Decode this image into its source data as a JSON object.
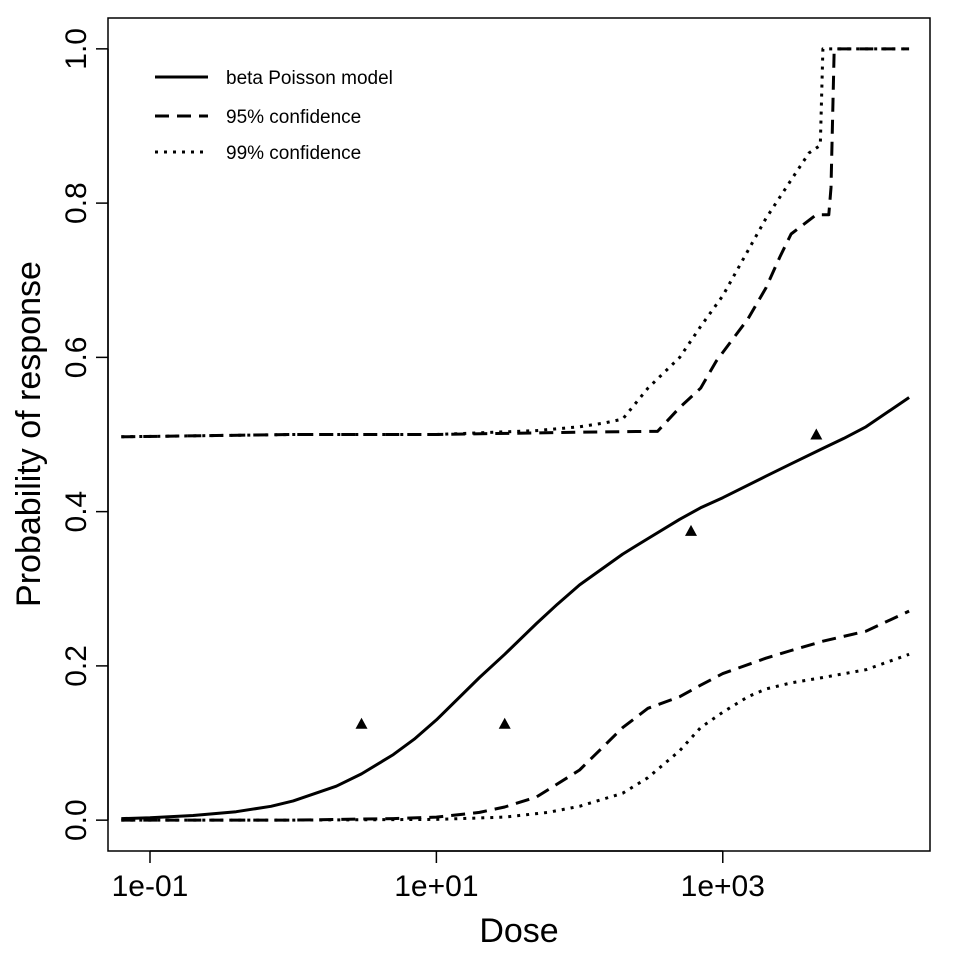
{
  "chart_data": {
    "type": "line",
    "xlabel": "Dose",
    "ylabel": "Probability of response",
    "x_scale": "log10",
    "xlim": [
      0.0509,
      28000
    ],
    "ylim": [
      -0.04,
      1.04
    ],
    "x_ticks": [
      0.1,
      10,
      1000
    ],
    "x_tick_labels": [
      "1e-01",
      "1e+01",
      "1e+03"
    ],
    "y_ticks": [
      0,
      0.2,
      0.4,
      0.6,
      0.8,
      1.0
    ],
    "y_tick_labels": [
      "0.0",
      "0.2",
      "0.4",
      "0.6",
      "0.8",
      "1.0"
    ],
    "legend": {
      "position": "top-left",
      "entries": [
        {
          "label": "beta Poisson model",
          "style": "solid"
        },
        {
          "label": "95% confidence",
          "style": "dashed"
        },
        {
          "label": "99% confidence",
          "style": "dotted"
        }
      ]
    },
    "series": [
      {
        "key": "model",
        "style": "solid",
        "x": [
          0.063,
          0.1,
          0.2,
          0.4,
          0.7,
          1,
          2,
          3,
          5,
          7,
          10,
          20,
          30,
          50,
          70,
          100,
          200,
          300,
          500,
          700,
          1000,
          2000,
          3000,
          5000,
          7000,
          10000,
          20000
        ],
        "y": [
          0.002,
          0.003,
          0.006,
          0.011,
          0.018,
          0.025,
          0.044,
          0.06,
          0.085,
          0.105,
          0.13,
          0.185,
          0.215,
          0.255,
          0.28,
          0.305,
          0.345,
          0.365,
          0.39,
          0.405,
          0.418,
          0.446,
          0.462,
          0.482,
          0.495,
          0.51,
          0.548
        ]
      },
      {
        "key": "ci95-upper",
        "style": "dashed",
        "x": [
          0.063,
          1,
          10,
          100,
          300,
          350,
          500,
          700,
          900,
          1500,
          2000,
          2500,
          3000,
          4500,
          5500,
          5700,
          6000,
          20000
        ],
        "y": [
          0.497,
          0.5,
          0.5,
          0.503,
          0.504,
          0.504,
          0.535,
          0.56,
          0.595,
          0.65,
          0.69,
          0.73,
          0.76,
          0.785,
          0.785,
          0.82,
          1.0,
          1.0
        ]
      },
      {
        "key": "ci95-lower",
        "style": "dashed",
        "x": [
          0.063,
          1,
          5,
          10,
          20,
          30,
          50,
          100,
          200,
          300,
          500,
          700,
          1000,
          2000,
          3000,
          5000,
          10000,
          20000
        ],
        "y": [
          0.0,
          0.0,
          0.002,
          0.004,
          0.01,
          0.017,
          0.03,
          0.065,
          0.12,
          0.145,
          0.16,
          0.175,
          0.19,
          0.21,
          0.22,
          0.232,
          0.245,
          0.271
        ]
      },
      {
        "key": "ci99-upper",
        "style": "dotted",
        "x": [
          0.063,
          1,
          10,
          50,
          100,
          150,
          200,
          300,
          500,
          700,
          1000,
          2000,
          3000,
          4000,
          4800,
          5000,
          20000
        ],
        "y": [
          0.497,
          0.5,
          0.5,
          0.505,
          0.51,
          0.515,
          0.52,
          0.56,
          0.6,
          0.64,
          0.68,
          0.78,
          0.83,
          0.865,
          0.875,
          1.0,
          1.0
        ]
      },
      {
        "key": "ci99-lower",
        "style": "dotted",
        "x": [
          0.063,
          1,
          10,
          30,
          60,
          100,
          200,
          300,
          500,
          700,
          1000,
          1500,
          2000,
          3000,
          5000,
          10000,
          20000
        ],
        "y": [
          0.0,
          0.0,
          0.001,
          0.004,
          0.01,
          0.018,
          0.035,
          0.055,
          0.09,
          0.12,
          0.14,
          0.16,
          0.17,
          0.178,
          0.185,
          0.195,
          0.215
        ]
      }
    ],
    "observed_points": {
      "marker": "triangle",
      "x": [
        3,
        30,
        600,
        4500
      ],
      "y": [
        0.125,
        0.125,
        0.375,
        0.5
      ]
    }
  }
}
